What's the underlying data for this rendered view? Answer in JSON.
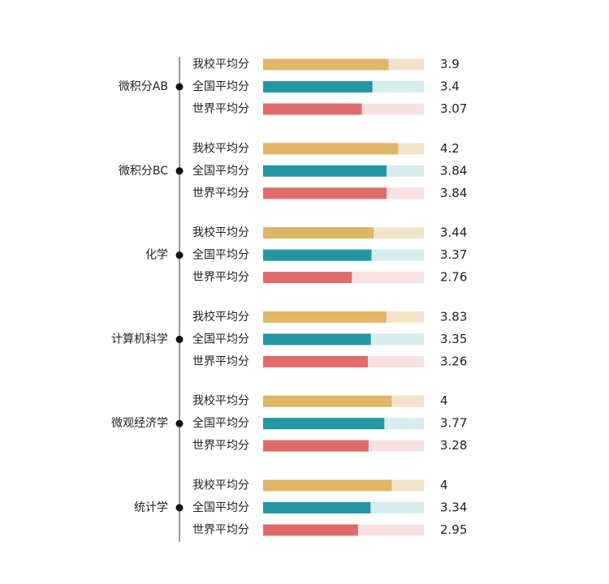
{
  "chart_data": {
    "type": "bar",
    "categories": [
      "微积分AB",
      "微积分BC",
      "化学",
      "计算机科学",
      "微观经济学",
      "统计学"
    ],
    "series": [
      {
        "name": "我校平均分",
        "color": "#e0b566",
        "track": "#f3e3c8",
        "values": [
          3.9,
          4.2,
          3.44,
          3.83,
          4,
          4
        ]
      },
      {
        "name": "全国平均分",
        "color": "#2596a6",
        "track": "#d6ecef",
        "values": [
          3.4,
          3.84,
          3.37,
          3.35,
          3.77,
          3.34
        ]
      },
      {
        "name": "世界平均分",
        "color": "#df6b6b",
        "track": "#f8e1e1",
        "values": [
          3.07,
          3.84,
          2.76,
          3.26,
          3.28,
          2.95
        ]
      }
    ],
    "xlim": [
      0,
      5
    ]
  }
}
